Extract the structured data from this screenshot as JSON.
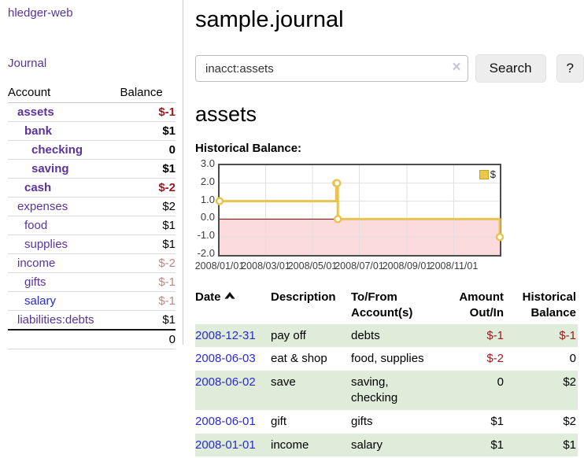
{
  "app": {
    "title": "hledger-web"
  },
  "colors": {
    "link_purple": "#5b339c",
    "link_blue": "#2a2ad4",
    "negative_strong": "#9a1c20",
    "negative_muted": "#c48484",
    "row_stripe_green": "#dfecd9",
    "series_yellow": "#e9c34f",
    "legend_swatch_fill": "#edc748",
    "legend_swatch_border": "#c2a02c"
  },
  "sidebar": {
    "journal_label": "Journal",
    "columns": {
      "account": "Account",
      "balance": "Balance"
    },
    "accounts": [
      {
        "name": "assets",
        "balance": "$-1",
        "depth": 0,
        "bold": true,
        "name_color": "#5b339c",
        "balance_color": "#9a1c20"
      },
      {
        "name": "bank",
        "balance": "$1",
        "depth": 1,
        "bold": true,
        "name_color": "#5b339c",
        "balance_color": "#000000"
      },
      {
        "name": "checking",
        "balance": "0",
        "depth": 2,
        "bold": true,
        "name_color": "#5b339c",
        "balance_color": "#000000"
      },
      {
        "name": "saving",
        "balance": "$1",
        "depth": 2,
        "bold": true,
        "name_color": "#5b339c",
        "balance_color": "#000000"
      },
      {
        "name": "cash",
        "balance": "$-2",
        "depth": 1,
        "bold": true,
        "name_color": "#5b339c",
        "balance_color": "#9a1c20"
      },
      {
        "name": "expenses",
        "balance": "$2",
        "depth": 0,
        "bold": false,
        "name_color": "#5b339c",
        "balance_color": "#000000"
      },
      {
        "name": "food",
        "balance": "$1",
        "depth": 1,
        "bold": false,
        "name_color": "#5b339c",
        "balance_color": "#000000"
      },
      {
        "name": "supplies",
        "balance": "$1",
        "depth": 1,
        "bold": false,
        "name_color": "#5b339c",
        "balance_color": "#000000"
      },
      {
        "name": "income",
        "balance": "$-2",
        "depth": 0,
        "bold": false,
        "name_color": "#5b339c",
        "balance_color": "#c48484"
      },
      {
        "name": "gifts",
        "balance": "$-1",
        "depth": 1,
        "bold": false,
        "name_color": "#5b339c",
        "balance_color": "#c48484"
      },
      {
        "name": "salary",
        "balance": "$-1",
        "depth": 1,
        "bold": false,
        "name_color": "#2a2ad4",
        "balance_color": "#c48484"
      },
      {
        "name": "liabilities:debts",
        "balance": "$1",
        "depth": 0,
        "bold": false,
        "name_color": "#5b339c",
        "balance_color": "#000000"
      }
    ],
    "total": "0"
  },
  "main": {
    "title": "sample.journal",
    "account_heading": "assets",
    "chart_title": "Historical Balance:"
  },
  "search": {
    "value": "inacct:assets",
    "button_label": "Search",
    "help_label": "?",
    "clear_icon": "×"
  },
  "chart_data": {
    "type": "line",
    "step": true,
    "title": "Historical Balance:",
    "series": [
      {
        "name": "$",
        "color": "#e9c34f",
        "points": [
          [
            "2008-01-01",
            1
          ],
          [
            "2008-06-01",
            2
          ],
          [
            "2008-06-02",
            2
          ],
          [
            "2008-06-03",
            0
          ],
          [
            "2008-12-31",
            -1
          ]
        ]
      }
    ],
    "x_range": [
      "2008/01/01",
      "2008/12/31"
    ],
    "xtick_labels": [
      "2008/01/01",
      "2008/03/01",
      "2008/05/01",
      "2008/07/01",
      "2008/09/01",
      "2008/11/01"
    ],
    "yticks": [
      3.0,
      2.0,
      1.0,
      0.0,
      -1.0,
      -2.0
    ],
    "ylim": [
      -2,
      3
    ],
    "grid": true,
    "legend": {
      "label": "$",
      "position": "top-right"
    },
    "negative_region_color": "#fbdbdb",
    "zero_line_color": "#7d0000",
    "gridline_color": "#e0e0e0"
  },
  "register": {
    "headers": [
      "Date",
      "Description",
      "To/From Account(s)",
      "Amount Out/In",
      "Historical Balance"
    ],
    "sort": {
      "column": "Date",
      "direction": "asc"
    },
    "rows": [
      {
        "date": "2008-12-31",
        "description": "pay off",
        "accounts": "debts",
        "amount": "$-1",
        "balance": "$-1"
      },
      {
        "date": "2008-06-03",
        "description": "eat & shop",
        "accounts": "food, supplies",
        "amount": "$-2",
        "balance": "0"
      },
      {
        "date": "2008-06-02",
        "description": "save",
        "accounts": "saving, checking",
        "amount": "0",
        "balance": "$2"
      },
      {
        "date": "2008-06-01",
        "description": "gift",
        "accounts": "gifts",
        "amount": "$1",
        "balance": "$2"
      },
      {
        "date": "2008-01-01",
        "description": "income",
        "accounts": "salary",
        "amount": "$1",
        "balance": "$1"
      }
    ]
  }
}
